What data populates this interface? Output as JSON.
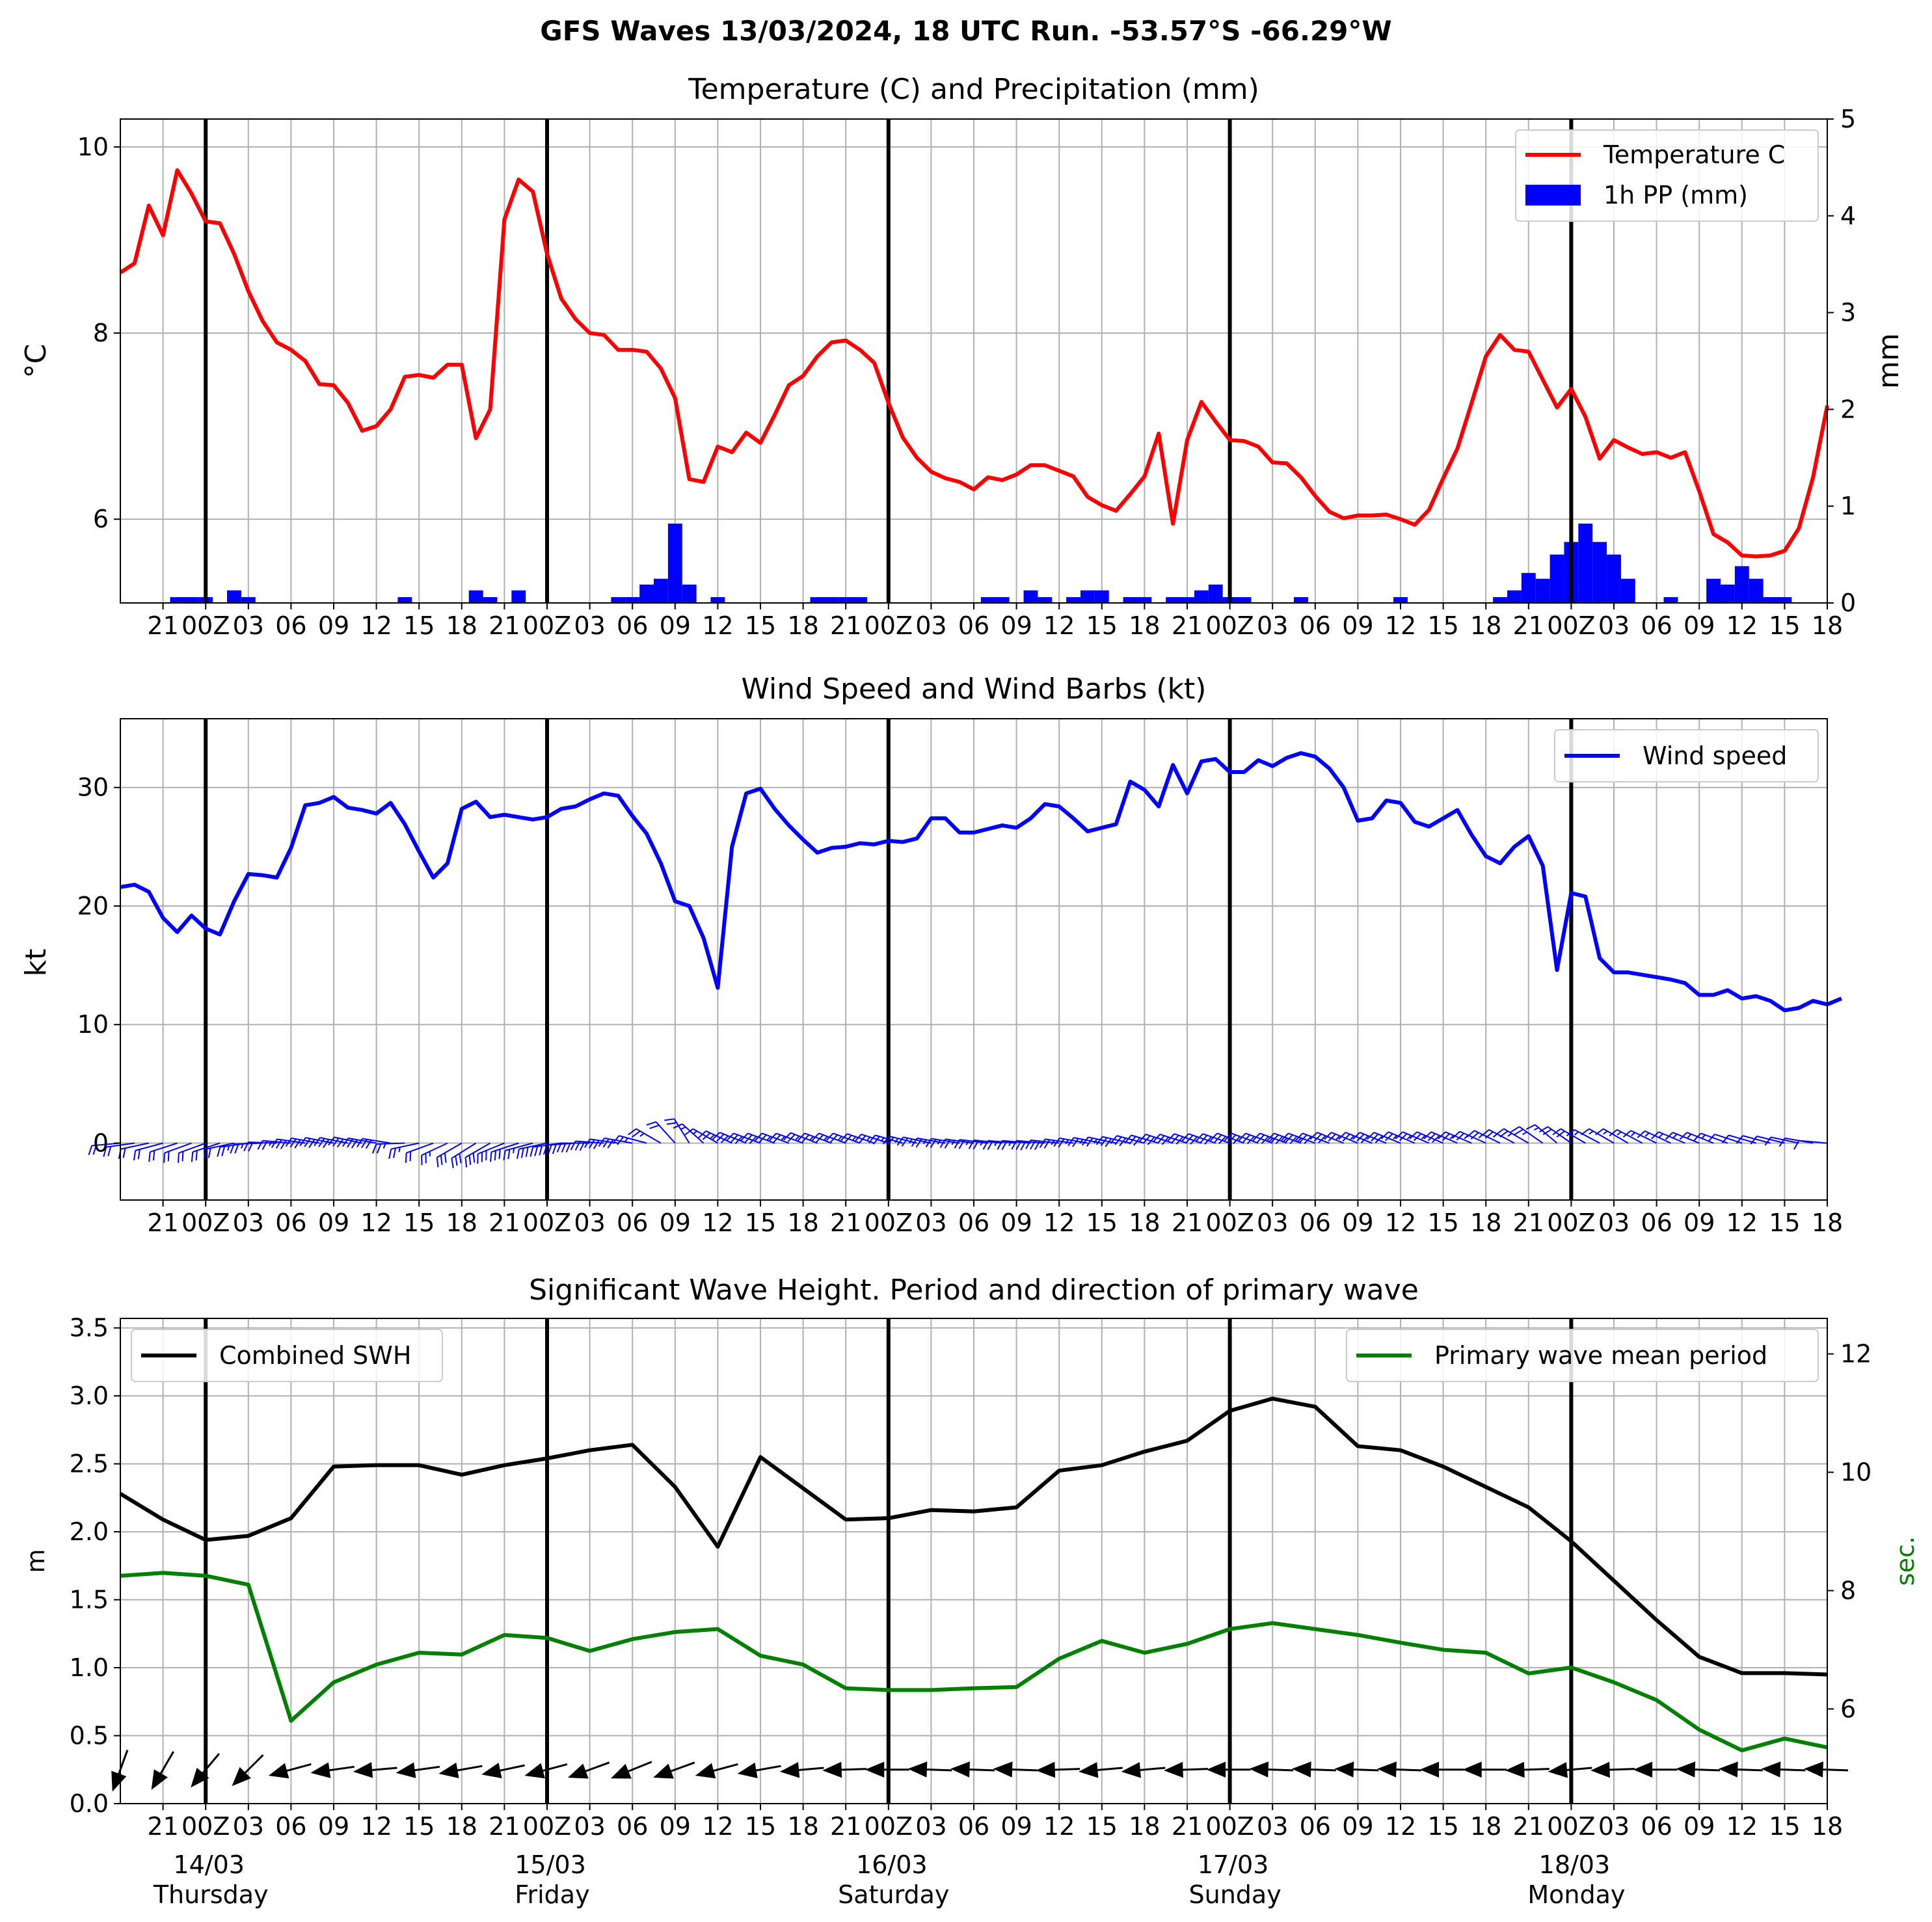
{
  "title": "GFS Waves 13/03/2024, 18 UTC Run. -53.57°S -66.29°W",
  "x_axis": {
    "start": "2024-03-13 18:00",
    "end": "2024-03-18 18:00",
    "step_hours": 3,
    "tick_labels": [
      "21",
      "00Z",
      "03",
      "06",
      "09",
      "12",
      "15",
      "18",
      "21",
      "00Z",
      "03",
      "06",
      "09",
      "12",
      "15",
      "18",
      "21",
      "00Z",
      "03",
      "06",
      "09",
      "12",
      "15",
      "18",
      "21",
      "00Z",
      "03",
      "06",
      "09",
      "12",
      "15",
      "18",
      "21",
      "00Z",
      "03",
      "06",
      "09",
      "12",
      "15",
      "18"
    ],
    "day_labels": [
      {
        "date": "14/03",
        "day": "Thursday"
      },
      {
        "date": "15/03",
        "day": "Friday"
      },
      {
        "date": "16/03",
        "day": "Saturday"
      },
      {
        "date": "17/03",
        "day": "Sunday"
      },
      {
        "date": "18/03",
        "day": "Monday"
      }
    ]
  },
  "chart_data": [
    {
      "type": "line",
      "title": "Temperature (C) and Precipitation (mm)",
      "ylabel": "$^\\circ$C",
      "ylabel_right": "mm",
      "ylim": [
        5.1,
        10.3
      ],
      "ylim_right": [
        0,
        5
      ],
      "yticks": [
        "6",
        "8",
        "10"
      ],
      "yticks_right": [
        "0",
        "1",
        "2",
        "3",
        "4",
        "5"
      ],
      "grid": true,
      "legend_position": "top-right",
      "series": [
        {
          "name": "Temperature C",
          "color": "#ff0000",
          "x_hours_step": 1,
          "values": [
            8.65,
            8.75,
            9.37,
            9.05,
            9.75,
            9.5,
            9.2,
            9.18,
            8.85,
            8.45,
            8.13,
            7.9,
            7.82,
            7.7,
            7.45,
            7.44,
            7.25,
            6.95,
            7.0,
            7.18,
            7.53,
            7.55,
            7.52,
            7.66,
            7.66,
            6.87,
            7.18,
            9.22,
            9.65,
            9.52,
            8.85,
            8.37,
            8.15,
            8.0,
            7.98,
            7.82,
            7.82,
            7.8,
            7.62,
            7.3,
            6.43,
            6.4,
            6.78,
            6.72,
            6.93,
            6.82,
            7.12,
            7.44,
            7.54,
            7.75,
            7.9,
            7.92,
            7.82,
            7.68,
            7.25,
            6.88,
            6.66,
            6.51,
            6.44,
            6.4,
            6.32,
            6.45,
            6.42,
            6.48,
            6.58,
            6.58,
            6.52,
            6.46,
            6.24,
            6.15,
            6.09,
            6.27,
            6.46,
            6.92,
            5.95,
            6.85,
            7.26,
            7.05,
            6.85,
            6.84,
            6.78,
            6.61,
            6.6,
            6.45,
            6.25,
            6.08,
            6.01,
            6.04,
            6.04,
            6.05,
            6.0,
            5.94,
            6.1,
            6.44,
            6.76,
            7.25,
            7.75,
            7.98,
            7.82,
            7.8,
            7.5,
            7.2,
            7.4,
            7.1,
            6.65,
            6.85,
            6.77,
            6.7,
            6.72,
            6.66,
            6.72,
            6.3,
            5.84,
            5.75,
            5.61,
            5.6,
            5.61,
            5.66,
            5.9,
            6.45,
            7.22
          ]
        },
        {
          "name": "1h PP (mm)",
          "color": "#0000ff",
          "type": "bar",
          "bars": [
            [
              4,
              0.06
            ],
            [
              5,
              0.06
            ],
            [
              6,
              0.06
            ],
            [
              8,
              0.13
            ],
            [
              9,
              0.06
            ],
            [
              20,
              0.06
            ],
            [
              25,
              0.13
            ],
            [
              26,
              0.06
            ],
            [
              28,
              0.13
            ],
            [
              35,
              0.06
            ],
            [
              36,
              0.06
            ],
            [
              37,
              0.19
            ],
            [
              38,
              0.25
            ],
            [
              39,
              0.82
            ],
            [
              40,
              0.19
            ],
            [
              42,
              0.06
            ],
            [
              49,
              0.06
            ],
            [
              50,
              0.06
            ],
            [
              51,
              0.06
            ],
            [
              52,
              0.06
            ],
            [
              61,
              0.06
            ],
            [
              62,
              0.06
            ],
            [
              64,
              0.13
            ],
            [
              65,
              0.06
            ],
            [
              67,
              0.06
            ],
            [
              68,
              0.13
            ],
            [
              69,
              0.13
            ],
            [
              71,
              0.06
            ],
            [
              72,
              0.06
            ],
            [
              74,
              0.06
            ],
            [
              75,
              0.06
            ],
            [
              76,
              0.13
            ],
            [
              77,
              0.19
            ],
            [
              78,
              0.06
            ],
            [
              79,
              0.06
            ],
            [
              83,
              0.06
            ],
            [
              90,
              0.06
            ],
            [
              97,
              0.06
            ],
            [
              98,
              0.13
            ],
            [
              99,
              0.31
            ],
            [
              100,
              0.25
            ],
            [
              101,
              0.5
            ],
            [
              102,
              0.63
            ],
            [
              103,
              0.82
            ],
            [
              104,
              0.63
            ],
            [
              105,
              0.5
            ],
            [
              106,
              0.25
            ],
            [
              109,
              0.06
            ],
            [
              112,
              0.25
            ],
            [
              113,
              0.19
            ],
            [
              114,
              0.38
            ],
            [
              115,
              0.25
            ],
            [
              116,
              0.06
            ],
            [
              117,
              0.06
            ]
          ]
        }
      ]
    },
    {
      "type": "line",
      "title": "Wind Speed and Wind Barbs (kt)",
      "ylabel": "kt",
      "ylim": [
        -4.8,
        35.8
      ],
      "yticks": [
        "0",
        "10",
        "20",
        "30"
      ],
      "grid": true,
      "legend_position": "top-right",
      "series": [
        {
          "name": "Wind speed",
          "color": "#0000ff",
          "x_hours_step": 1,
          "values": [
            21.6,
            21.8,
            21.2,
            19.0,
            17.8,
            19.2,
            18.1,
            17.6,
            20.4,
            22.7,
            22.6,
            22.4,
            24.9,
            28.5,
            28.7,
            29.2,
            28.3,
            28.1,
            27.8,
            28.7,
            26.9,
            24.6,
            22.4,
            23.6,
            28.2,
            28.8,
            27.5,
            27.7,
            27.5,
            27.3,
            27.5,
            28.2,
            28.4,
            29.0,
            29.5,
            29.3,
            27.6,
            26.1,
            23.6,
            20.4,
            20.0,
            17.3,
            13.1,
            25.0,
            29.5,
            29.9,
            28.2,
            26.8,
            25.6,
            24.5,
            24.9,
            25.0,
            25.3,
            25.2,
            25.5,
            25.4,
            25.7,
            27.4,
            27.4,
            26.2,
            26.2,
            26.5,
            26.8,
            26.6,
            27.4,
            28.6,
            28.4,
            27.4,
            26.3,
            26.6,
            26.9,
            30.5,
            29.8,
            28.4,
            31.9,
            29.5,
            32.2,
            32.4,
            31.3,
            31.3,
            32.3,
            31.8,
            32.5,
            32.9,
            32.6,
            31.6,
            30.0,
            27.2,
            27.4,
            28.9,
            28.7,
            27.1,
            26.7,
            27.4,
            28.1,
            26.0,
            24.2,
            23.6,
            25.0,
            25.9,
            23.4,
            14.6,
            21.1,
            20.8,
            15.6,
            14.4,
            14.4,
            14.2,
            14.0,
            13.8,
            13.5,
            12.5,
            12.5,
            12.9,
            12.2,
            12.4,
            12.0,
            11.2,
            11.4,
            12.0,
            11.7,
            12.2
          ]
        }
      ],
      "wind_barbs": {
        "x_hours_step": 1,
        "direction_from_deg": [
          265,
          262,
          258,
          255,
          252,
          250,
          250,
          252,
          258,
          262,
          268,
          272,
          275,
          278,
          280,
          281,
          281,
          282,
          280,
          279,
          268,
          258,
          250,
          245,
          240,
          238,
          240,
          248,
          252,
          255,
          258,
          262,
          266,
          270,
          274,
          278,
          280,
          285,
          300,
          318,
          328,
          312,
          300,
          295,
          292,
          290,
          290,
          290,
          290,
          291,
          290,
          290,
          290,
          289,
          288,
          286,
          284,
          282,
          280,
          279,
          278,
          277,
          276,
          275,
          275,
          275,
          276,
          278,
          280,
          281,
          282,
          283,
          285,
          286,
          288,
          288,
          289,
          289,
          289,
          290,
          290,
          290,
          290,
          290,
          290,
          290,
          292,
          292,
          292,
          292,
          292,
          293,
          293,
          293,
          293,
          293,
          294,
          296,
          298,
          300,
          305,
          310,
          305,
          300,
          298,
          300,
          300,
          298,
          296,
          295,
          293,
          292,
          292,
          290,
          288,
          286,
          285,
          284,
          282,
          280,
          275
        ]
      }
    },
    {
      "type": "line",
      "title": "Significant Wave Height. Period and direction of primary wave",
      "ylabel": "m",
      "ylabel_right": "sec.",
      "ylim": [
        0,
        3.57
      ],
      "ylim_right": [
        4.4,
        12.6
      ],
      "yticks": [
        "0.0",
        "0.5",
        "1.0",
        "1.5",
        "2.0",
        "2.5",
        "3.0",
        "3.5"
      ],
      "yticks_right": [
        "6",
        "8",
        "10",
        "12"
      ],
      "grid": true,
      "series": [
        {
          "name": "Combined SWH",
          "color": "#000000",
          "legend_position": "top-left",
          "x_hours_step": 3,
          "values": [
            2.28,
            2.09,
            1.94,
            1.97,
            2.1,
            2.48,
            2.49,
            2.49,
            2.42,
            2.49,
            2.54,
            2.6,
            2.64,
            2.33,
            1.89,
            2.55,
            2.32,
            2.09,
            2.1,
            2.16,
            2.15,
            2.18,
            2.45,
            2.49,
            2.59,
            2.67,
            2.89,
            2.98,
            2.92,
            2.63,
            2.6,
            2.48,
            2.33,
            2.18,
            1.93,
            1.64,
            1.35,
            1.08,
            0.96,
            0.96,
            0.95
          ]
        },
        {
          "name": "Primary wave mean period",
          "color": "#008000",
          "legend_position": "top-right",
          "x_hours_step": 3,
          "values": [
            8.25,
            8.3,
            8.25,
            8.1,
            5.8,
            6.45,
            6.75,
            6.95,
            6.92,
            7.25,
            7.2,
            6.98,
            7.18,
            7.3,
            7.35,
            6.9,
            6.75,
            6.35,
            6.32,
            6.32,
            6.35,
            6.37,
            6.85,
            7.15,
            6.95,
            7.1,
            7.35,
            7.45,
            7.35,
            7.25,
            7.12,
            7.0,
            6.95,
            6.6,
            6.7,
            6.45,
            6.15,
            5.65,
            5.3,
            5.5,
            5.35
          ]
        }
      ],
      "wave_direction_arrows": {
        "x_hours_step": 3,
        "direction_to_deg": [
          200,
          210,
          220,
          225,
          255,
          262,
          265,
          262,
          260,
          258,
          255,
          250,
          248,
          250,
          255,
          260,
          265,
          268,
          270,
          272,
          272,
          272,
          268,
          265,
          265,
          268,
          270,
          272,
          272,
          272,
          272,
          270,
          270,
          268,
          265,
          268,
          270,
          272,
          272,
          272,
          272
        ]
      }
    }
  ]
}
